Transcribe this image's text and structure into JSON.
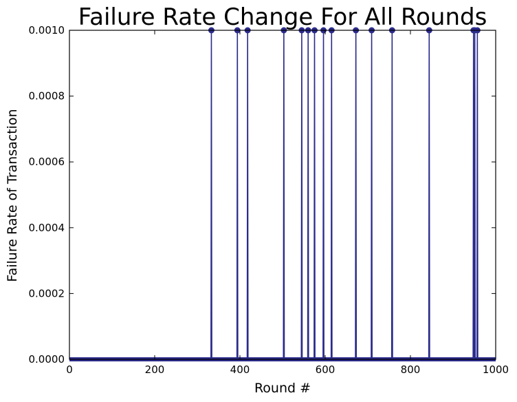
{
  "chart_data": {
    "type": "line",
    "title": "Failure Rate Change For All Rounds",
    "xlabel": "Round #",
    "ylabel": "Failure Rate of Transaction",
    "xlim": [
      0,
      1000
    ],
    "ylim": [
      0,
      0.001
    ],
    "x_ticks": [
      "0",
      "200",
      "400",
      "600",
      "800",
      "1000"
    ],
    "x_tick_values": [
      0,
      200,
      400,
      600,
      800,
      1000
    ],
    "y_ticks": [
      "0.0000",
      "0.0002",
      "0.0004",
      "0.0006",
      "0.0008",
      "0.0010"
    ],
    "y_tick_values": [
      0,
      0.0002,
      0.0004,
      0.0006,
      0.0008,
      0.001
    ],
    "grid": false,
    "series_color": "#2b2b8c",
    "baseline_value": 0,
    "spike_value": 0.001,
    "spike_rounds": [
      333,
      394,
      418,
      503,
      545,
      560,
      575,
      596,
      615,
      672,
      709,
      757,
      844,
      948,
      951,
      957
    ]
  }
}
